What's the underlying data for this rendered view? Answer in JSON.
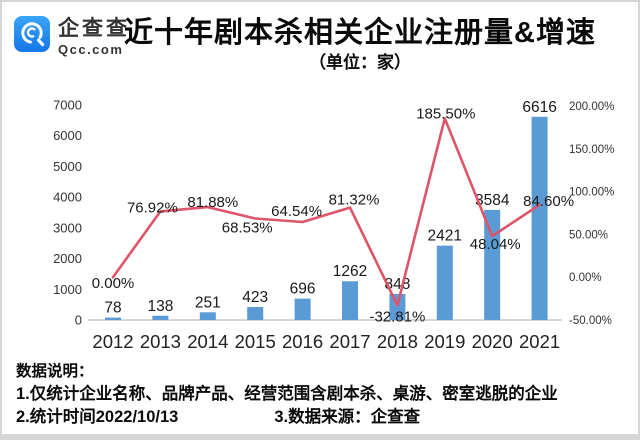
{
  "brand": {
    "name": "企查查",
    "domain": "Qcc.com",
    "badge_color_top": "#3aa4f6",
    "badge_color_bottom": "#1677e8"
  },
  "header": {
    "title": "近十年剧本杀相关企业注册量&增速",
    "subtitle": "（单位：家）"
  },
  "chart_data": {
    "type": "bar+line combo",
    "categories": [
      "2012",
      "2013",
      "2014",
      "2015",
      "2016",
      "2017",
      "2018",
      "2019",
      "2020",
      "2021"
    ],
    "series": [
      {
        "name": "企业注册量",
        "type": "bar",
        "color": "#5B9BD5",
        "values": [
          78,
          138,
          251,
          423,
          696,
          1262,
          848,
          2421,
          3584,
          6616
        ],
        "labels": [
          "78",
          "138",
          "251",
          "423",
          "696",
          "1262",
          "848",
          "2421",
          "3584",
          "6616"
        ]
      },
      {
        "name": "增速",
        "type": "line",
        "color": "#DE5468",
        "values": [
          0.0,
          76.92,
          81.88,
          68.53,
          64.54,
          81.32,
          -32.81,
          185.5,
          48.04,
          84.6
        ],
        "labels": [
          "0.00%",
          "76.92%",
          "81.88%",
          "68.53%",
          "64.54%",
          "81.32%",
          "-32.81%",
          "185.50%",
          "48.04%",
          "84.60%"
        ]
      }
    ],
    "left_axis": {
      "min": 0,
      "max": 7000,
      "step": 1000,
      "ticks": [
        "0",
        "1000",
        "2000",
        "3000",
        "4000",
        "5000",
        "6000",
        "7000"
      ]
    },
    "right_axis": {
      "min": -50,
      "max": 200,
      "step": 50,
      "ticks": [
        "-50.00%",
        "0.00%",
        "50.00%",
        "100.00%",
        "150.00%",
        "200.00%"
      ]
    },
    "grid": false,
    "legend": "none",
    "axis_line_color": "#c9c9c9",
    "label_color": "#1a1a1a"
  },
  "footer": {
    "heading": "数据说明：",
    "note1": "1.仅统计企业名称、品牌产品、经营范围含剧本杀、桌游、密室逃脱的企业",
    "note2": "2.统计时间2022/10/13",
    "note3": "3.数据来源：企查查"
  }
}
